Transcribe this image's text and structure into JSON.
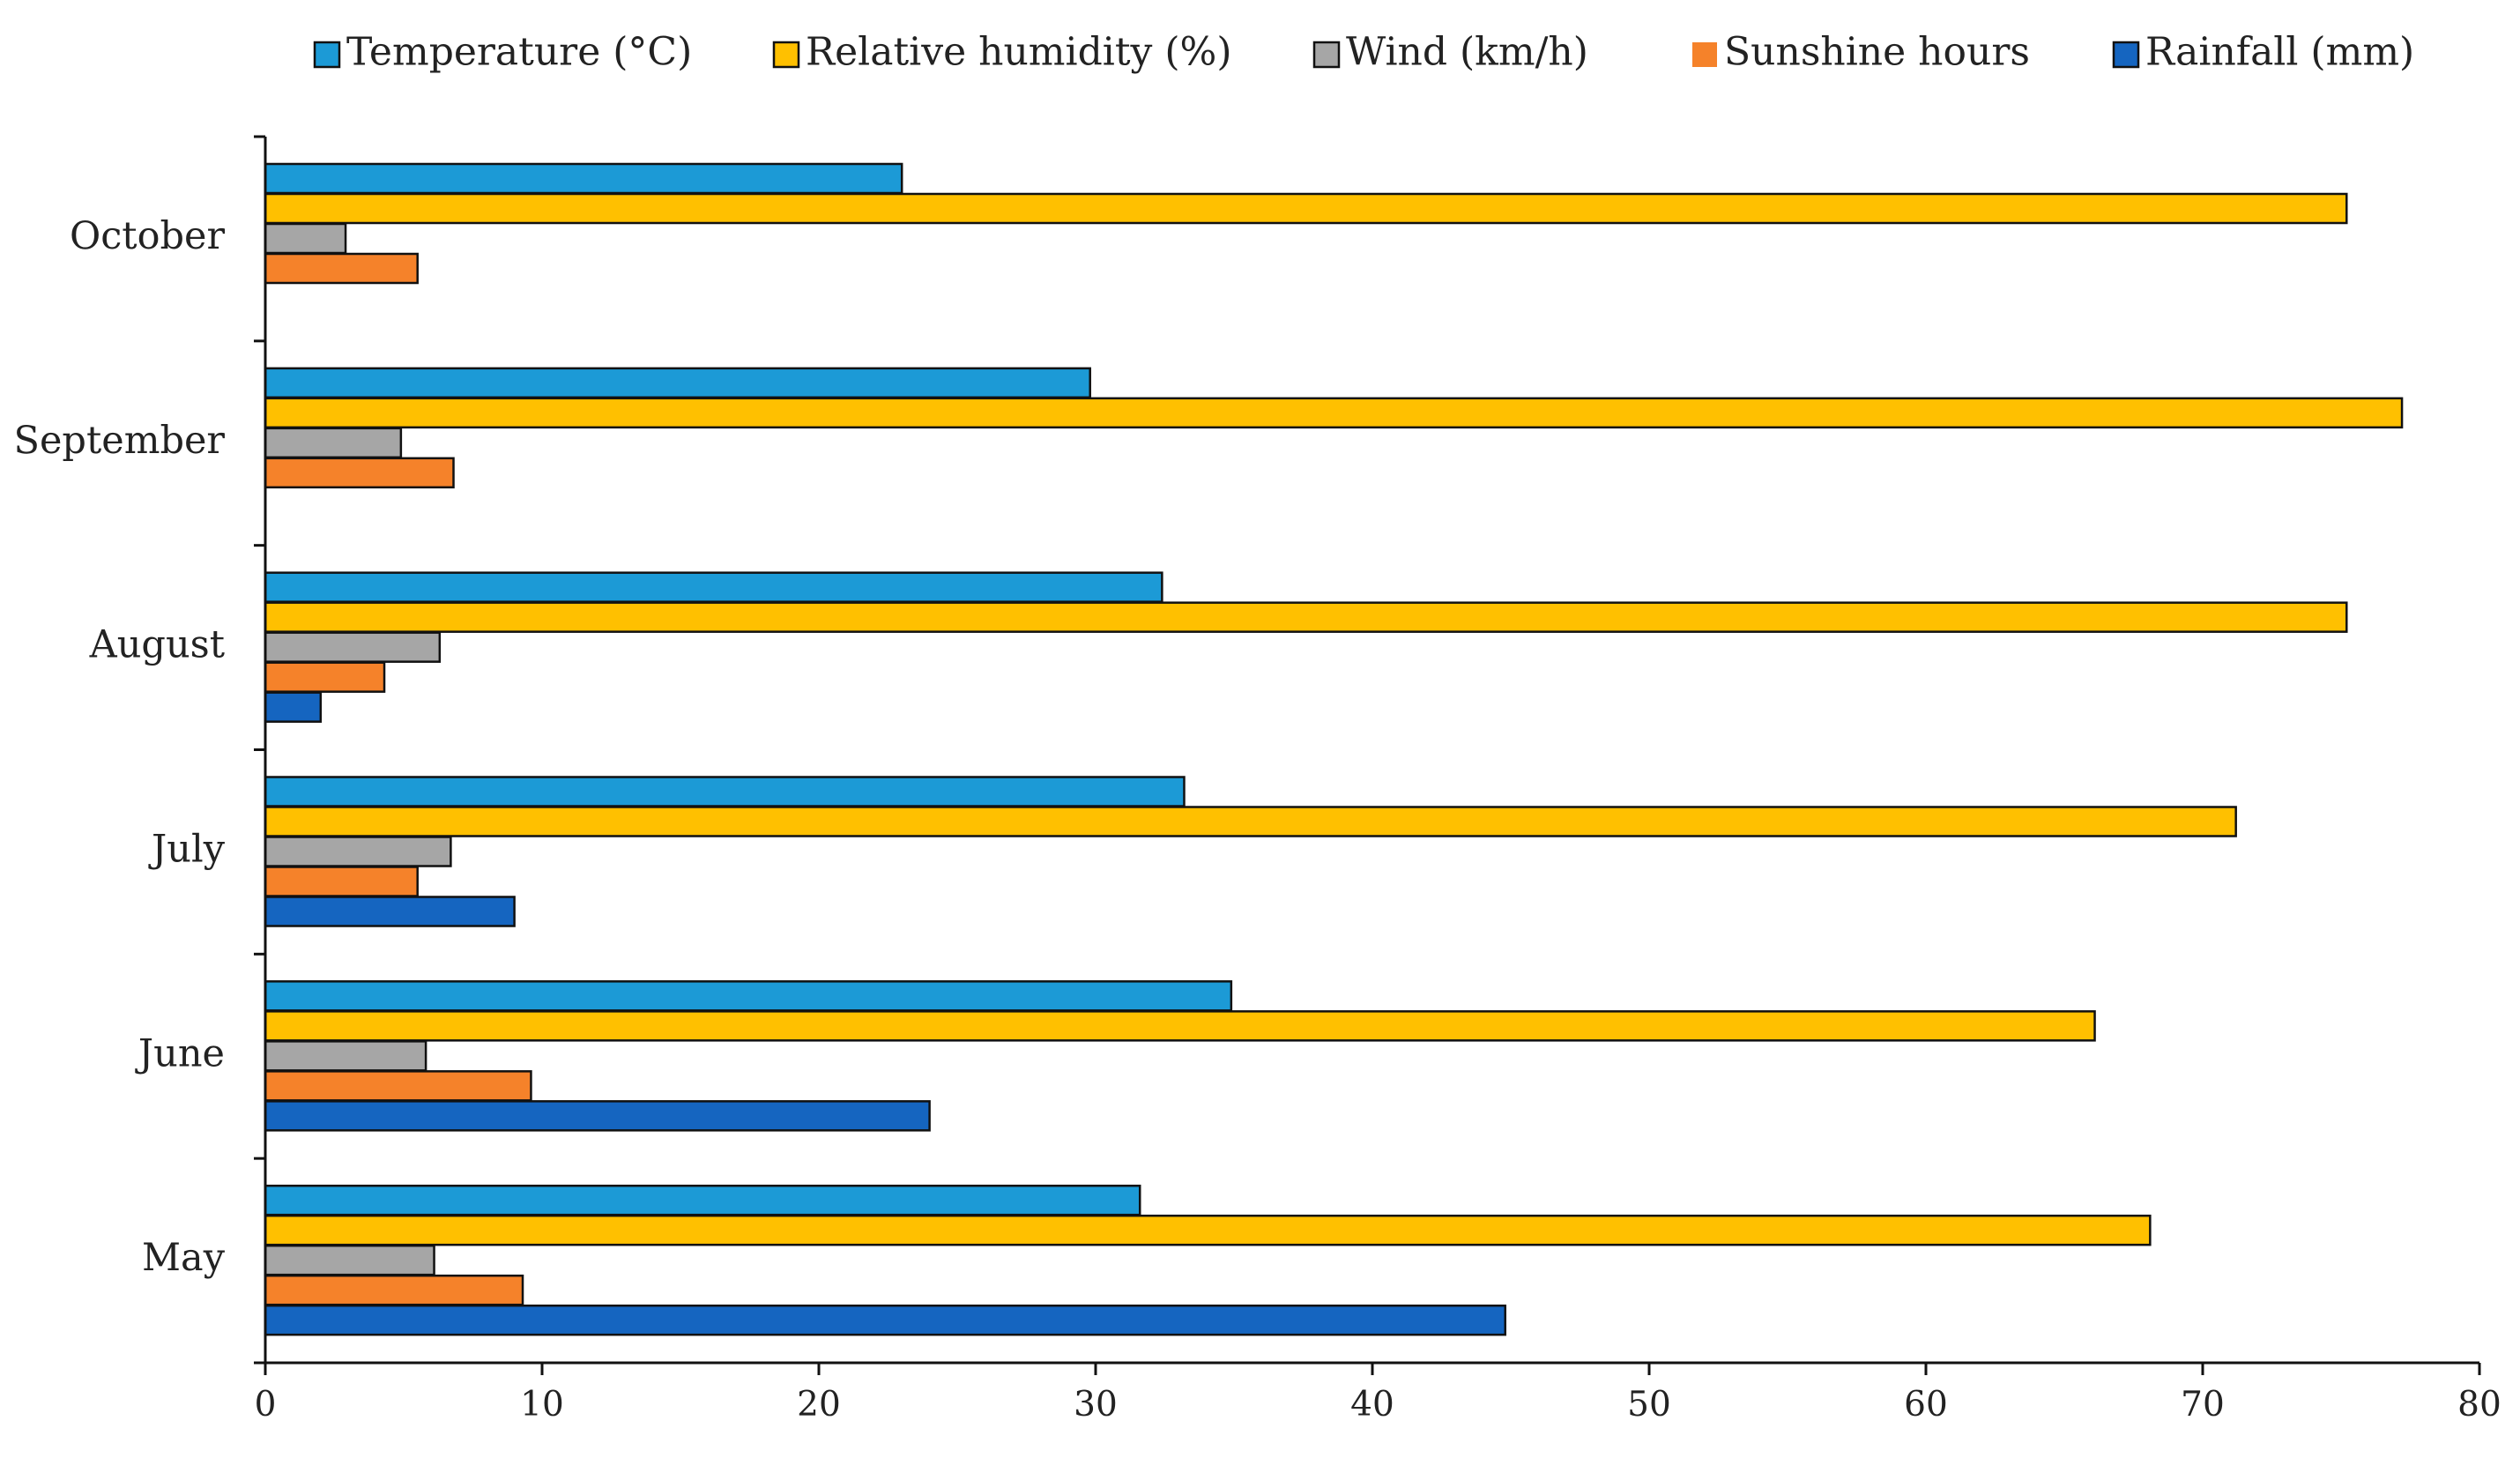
{
  "chart_data": {
    "type": "bar",
    "orientation": "horizontal",
    "title": "",
    "xlabel": "",
    "ylabel": "",
    "xlim": [
      0,
      80
    ],
    "xticks": [
      0,
      10,
      20,
      30,
      40,
      50,
      60,
      70,
      80
    ],
    "grid": false,
    "legend_position": "top",
    "categories": [
      "October",
      "September",
      "August",
      "July",
      "June",
      "May"
    ],
    "series": [
      {
        "name": "Temperature (°C)",
        "color": "#1c9ad6",
        "values": [
          23.0,
          29.8,
          32.4,
          33.2,
          34.9,
          31.6
        ]
      },
      {
        "name": "Relative humidity (%)",
        "color": "#ffc000",
        "values": [
          75.2,
          77.2,
          75.2,
          71.2,
          66.1,
          68.1
        ]
      },
      {
        "name": "Wind (km/h)",
        "color": "#a6a6a6",
        "values": [
          2.9,
          4.9,
          6.3,
          6.7,
          5.8,
          6.1
        ]
      },
      {
        "name": "Sunshine hours",
        "color": "#f5822a",
        "values": [
          5.5,
          6.8,
          4.3,
          5.5,
          9.6,
          9.3
        ]
      },
      {
        "name": "Rainfall (mm)",
        "color": "#1565c0",
        "values": [
          0,
          0,
          2.0,
          9.0,
          24.0,
          44.8
        ]
      }
    ]
  }
}
